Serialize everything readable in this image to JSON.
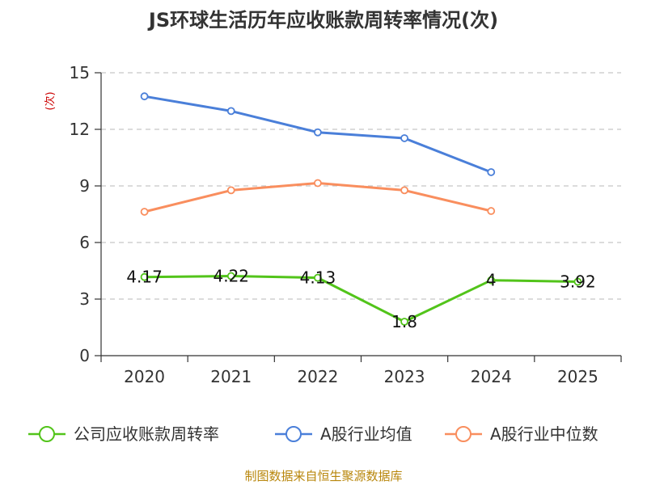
{
  "chart_data": {
    "type": "line",
    "title": "JS环球生活历年应收账款周转率情况(次)",
    "ylabel": "(次)",
    "xlabel": "",
    "categories": [
      "2020",
      "2021",
      "2022",
      "2023",
      "2024",
      "2025"
    ],
    "ylim": [
      0,
      15
    ],
    "yticks": [
      0,
      3,
      6,
      9,
      12,
      15
    ],
    "grid": true,
    "legend_position": "bottom",
    "series": [
      {
        "name": "公司应收账款周转率",
        "color": "#52c41a",
        "values": [
          4.17,
          4.22,
          4.13,
          1.8,
          4,
          3.92
        ],
        "labels": [
          "4.17",
          "4.22",
          "4.13",
          "1.8",
          "4",
          "3.92"
        ]
      },
      {
        "name": "A股行业均值",
        "color": "#4a7fd9",
        "values": [
          13.75,
          12.97,
          11.84,
          11.53,
          9.73,
          null
        ]
      },
      {
        "name": "A股行业中位数",
        "color": "#f98e5e",
        "values": [
          7.63,
          8.77,
          9.15,
          8.77,
          7.67,
          null
        ]
      }
    ],
    "source": "制图数据来自恒生聚源数据库"
  }
}
